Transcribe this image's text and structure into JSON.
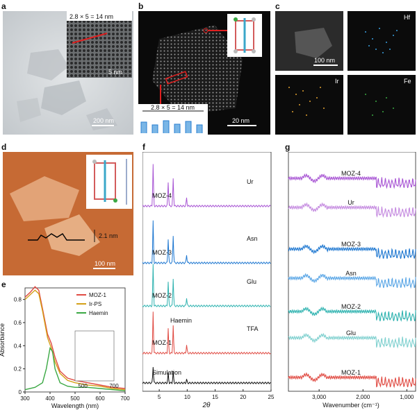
{
  "labels": {
    "a": "a",
    "b": "b",
    "c": "c",
    "d": "d",
    "e": "e",
    "f": "f",
    "g": "g"
  },
  "panel_a": {
    "inset_formula": "2.8 × 5 = 14 nm",
    "inset_scale": "5 nm",
    "scale": "200 nm"
  },
  "panel_b": {
    "formula": "2.8 × 5 = 14 nm",
    "scale": "20 nm"
  },
  "panel_c": {
    "scale": "100 nm",
    "maps": [
      "Hf",
      "Ir",
      "Fe"
    ]
  },
  "panel_d": {
    "height": "2.1 nm",
    "scale": "100 nm"
  },
  "chart_data": [
    {
      "id": "e",
      "type": "line",
      "xlabel": "Wavelength (nm)",
      "ylabel": "Absorbance",
      "xlim": [
        300,
        700
      ],
      "ylim": [
        0,
        0.9
      ],
      "xticks": [
        300,
        400,
        500,
        600,
        700
      ],
      "yticks": [
        0,
        0.2,
        0.4,
        0.6,
        0.8
      ],
      "legend_position": "top-right",
      "series": [
        {
          "name": "MOZ-1",
          "color": "#e04b43",
          "x": [
            300,
            320,
            340,
            355,
            370,
            390,
            405,
            420,
            440,
            470,
            500,
            550,
            600,
            650,
            700
          ],
          "y": [
            0.82,
            0.86,
            0.91,
            0.88,
            0.72,
            0.5,
            0.42,
            0.3,
            0.18,
            0.12,
            0.1,
            0.08,
            0.06,
            0.04,
            0.03
          ]
        },
        {
          "name": "Ir-PS",
          "color": "#d4a017",
          "x": [
            300,
            320,
            340,
            355,
            370,
            390,
            405,
            420,
            440,
            470,
            500,
            550,
            600,
            650,
            700
          ],
          "y": [
            0.8,
            0.84,
            0.88,
            0.85,
            0.7,
            0.47,
            0.38,
            0.26,
            0.16,
            0.1,
            0.08,
            0.06,
            0.05,
            0.03,
            0.02
          ]
        },
        {
          "name": "Haemin",
          "color": "#3aa843",
          "x": [
            300,
            340,
            370,
            385,
            400,
            410,
            420,
            440,
            470,
            500,
            550,
            600,
            650,
            700
          ],
          "y": [
            0.02,
            0.04,
            0.08,
            0.2,
            0.38,
            0.35,
            0.2,
            0.08,
            0.05,
            0.04,
            0.04,
            0.03,
            0.02,
            0.01
          ]
        }
      ],
      "inset": {
        "xticks": [
          500,
          700
        ]
      }
    },
    {
      "id": "f",
      "type": "line",
      "xlabel": "2θ",
      "xlim": [
        2,
        25
      ],
      "xticks": [
        5,
        10,
        15,
        20,
        25
      ],
      "series": [
        {
          "name": "MOZ-4",
          "label": "Ur",
          "color": "#a855d4"
        },
        {
          "name": "MOZ-3",
          "label": "Asn",
          "color": "#1f78d1"
        },
        {
          "name": "MOZ-2",
          "label": "Glu",
          "color": "#2fb3b0"
        },
        {
          "name": "MOZ-1",
          "label": "TFA",
          "color": "#e04b43"
        },
        {
          "name": "Simulation",
          "color": "#111111"
        }
      ],
      "peaks_2theta": [
        3.9,
        6.6,
        7.5,
        9.9
      ],
      "annotations": {
        "haemin": "Haemin",
        "tfa": "TFA"
      }
    },
    {
      "id": "g",
      "type": "line",
      "xlabel": "Wavenumber (cm⁻¹)",
      "xlim": [
        3700,
        800
      ],
      "xticks": [
        3000,
        2000,
        1000
      ],
      "xticklabels": [
        "3,000",
        "2,000",
        "1,000"
      ],
      "series": [
        {
          "name": "MOZ-4",
          "color": "#a855d4"
        },
        {
          "name": "Ur",
          "color": "#c58be0"
        },
        {
          "name": "MOZ-3",
          "color": "#1f78d1"
        },
        {
          "name": "Asn",
          "color": "#5aa6e6"
        },
        {
          "name": "MOZ-2",
          "color": "#2fb3b0"
        },
        {
          "name": "Glu",
          "color": "#7fd0cf"
        },
        {
          "name": "MOZ-1",
          "color": "#e04b43"
        }
      ]
    }
  ]
}
